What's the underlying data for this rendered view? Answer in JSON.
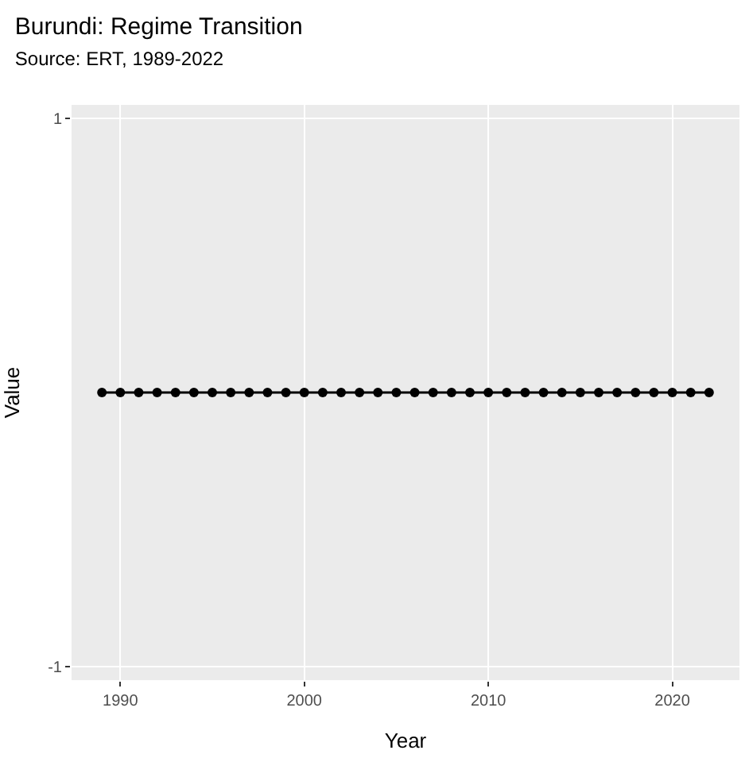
{
  "chart_data": {
    "type": "line",
    "title": "Burundi: Regime Transition",
    "subtitle": "Source: ERT, 1989-2022",
    "xlabel": "Year",
    "ylabel": "Value",
    "x": [
      1989,
      1990,
      1991,
      1992,
      1993,
      1994,
      1995,
      1996,
      1997,
      1998,
      1999,
      2000,
      2001,
      2002,
      2003,
      2004,
      2005,
      2006,
      2007,
      2008,
      2009,
      2010,
      2011,
      2012,
      2013,
      2014,
      2015,
      2016,
      2017,
      2018,
      2019,
      2020,
      2021,
      2022
    ],
    "series": [
      {
        "color": "#000000",
        "values": [
          0,
          0,
          0,
          0,
          0,
          0,
          0,
          0,
          0,
          0,
          0,
          0,
          0,
          0,
          0,
          0,
          0,
          0,
          0,
          0,
          0,
          0,
          0,
          0,
          0,
          0,
          0,
          0,
          0,
          0,
          0,
          0,
          0,
          0
        ]
      }
    ],
    "xlim": [
      1987.35,
      2023.65
    ],
    "xticks": [
      1990,
      2000,
      2010,
      2020
    ],
    "ylim": [
      -1.05,
      1.05
    ],
    "yticks": [
      -1,
      1
    ],
    "grid": true,
    "marker": "circle",
    "line_style": "solid"
  }
}
